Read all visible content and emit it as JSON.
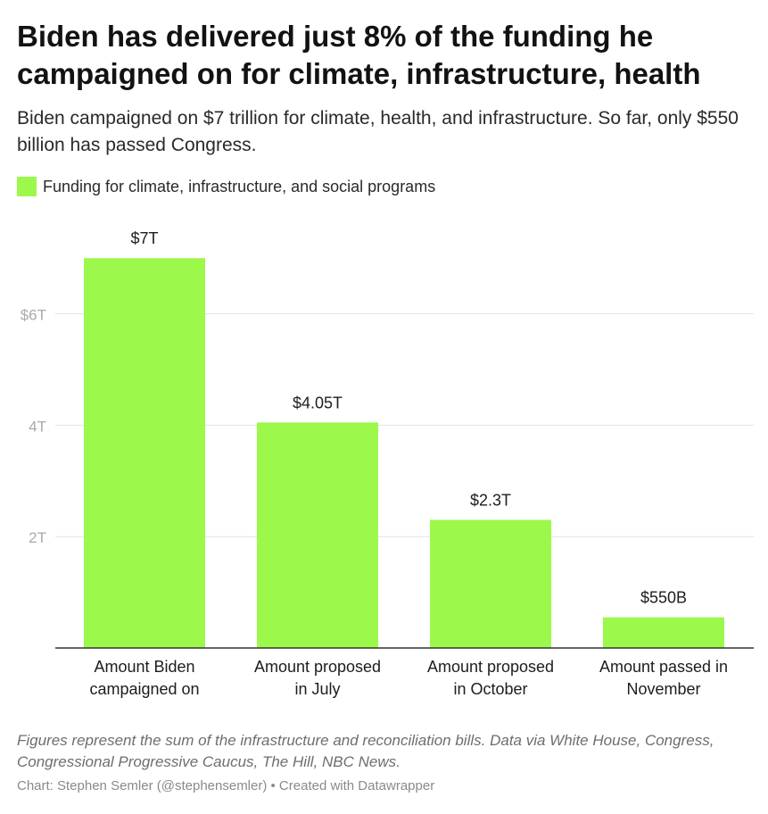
{
  "title": "Biden has delivered just 8% of the funding he campaigned on for climate, infrastructure, health",
  "subtitle": "Biden campaigned on $7 trillion for climate, health, and infrastructure. So far, only $550 billion has passed Congress.",
  "notes": "Figures represent the sum of the infrastructure and reconciliation bills. Data via White House, Congress, Congressional Progressive Caucus, The Hill, NBC News.",
  "credit": "Chart: Stephen Semler (@stephensemler) • Created with Datawrapper",
  "colors": {
    "bar": "#9df84c",
    "grid": "#e3e3e3",
    "axis": "#333333",
    "tick": "#aaaaaa"
  },
  "chart_data": {
    "type": "bar",
    "categories": [
      [
        "Amount Biden",
        "campaigned on"
      ],
      [
        "Amount proposed",
        "in July"
      ],
      [
        "Amount proposed",
        "in October"
      ],
      [
        "Amount passed in",
        "November"
      ]
    ],
    "series": [
      {
        "name": "Funding for climate, infrastructure, and social programs",
        "values": [
          7,
          4.05,
          2.3,
          0.55
        ],
        "labels": [
          "$7T",
          "$4.05T",
          "$2.3T",
          "$550B"
        ]
      }
    ],
    "yticks": [
      {
        "value": 2,
        "label": "2T"
      },
      {
        "value": 4,
        "label": "4T"
      },
      {
        "value": 6,
        "label": "$6T"
      }
    ],
    "ylim": [
      0,
      7
    ],
    "unit": "trillions of dollars",
    "grid": true,
    "legend": "top-left"
  }
}
